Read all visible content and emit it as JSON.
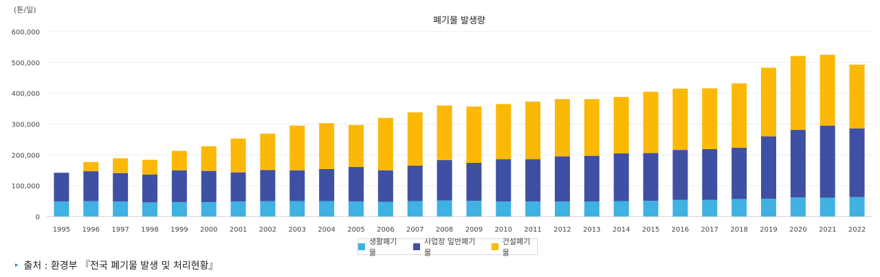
{
  "chart_data": {
    "type": "bar",
    "stacked": true,
    "title": "폐기물 발생량",
    "unit_label": "(톤/일)",
    "ylim": [
      0,
      600000
    ],
    "yticks": [
      0,
      100000,
      200000,
      300000,
      400000,
      500000,
      600000
    ],
    "ytick_labels": [
      "0",
      "100,000",
      "200,000",
      "300,000",
      "400,000",
      "500,000",
      "600,000"
    ],
    "grid": true,
    "legend_position": "bottom-center",
    "categories": [
      "1995",
      "1996",
      "1997",
      "1998",
      "1999",
      "2000",
      "2001",
      "2002",
      "2003",
      "2004",
      "2005",
      "2006",
      "2007",
      "2008",
      "2009",
      "2010",
      "2011",
      "2012",
      "2013",
      "2014",
      "2015",
      "2016",
      "2017",
      "2018",
      "2019",
      "2020",
      "2021",
      "2022"
    ],
    "series": [
      {
        "name": "생활폐기물",
        "color": "#3fb1e3",
        "values": [
          49000,
          50000,
          49000,
          46000,
          47000,
          47000,
          49000,
          50000,
          50000,
          50000,
          49000,
          48000,
          50000,
          52000,
          51000,
          49000,
          49000,
          49000,
          49000,
          50000,
          51000,
          54000,
          54000,
          57000,
          58000,
          62000,
          61000,
          63000
        ]
      },
      {
        "name": "사업장 일반폐기물",
        "color": "#3f4fa3",
        "values": [
          93000,
          97000,
          92000,
          90000,
          103000,
          101000,
          94000,
          101000,
          100000,
          104000,
          112000,
          102000,
          115000,
          131000,
          123000,
          137000,
          137000,
          146000,
          148000,
          155000,
          155000,
          162000,
          165000,
          166000,
          202000,
          219000,
          234000,
          223000
        ]
      },
      {
        "name": "건설폐기물",
        "color": "#fbb806",
        "values": [
          0,
          30000,
          48000,
          48000,
          63000,
          80000,
          110000,
          118000,
          145000,
          149000,
          136000,
          170000,
          173000,
          177000,
          183000,
          179000,
          187000,
          186000,
          184000,
          183000,
          199000,
          199000,
          197000,
          209000,
          223000,
          240000,
          230000,
          207000
        ]
      }
    ]
  },
  "legend": {
    "items": [
      {
        "label": "생활폐기물",
        "color": "#3fb1e3"
      },
      {
        "label": "사업장 일반폐기물",
        "color": "#3f4fa3"
      },
      {
        "label": "건설폐기물",
        "color": "#fbb806"
      }
    ]
  },
  "source": {
    "label": "출처 : 환경부 『전국 폐기물 발생 및 처리현황』"
  }
}
